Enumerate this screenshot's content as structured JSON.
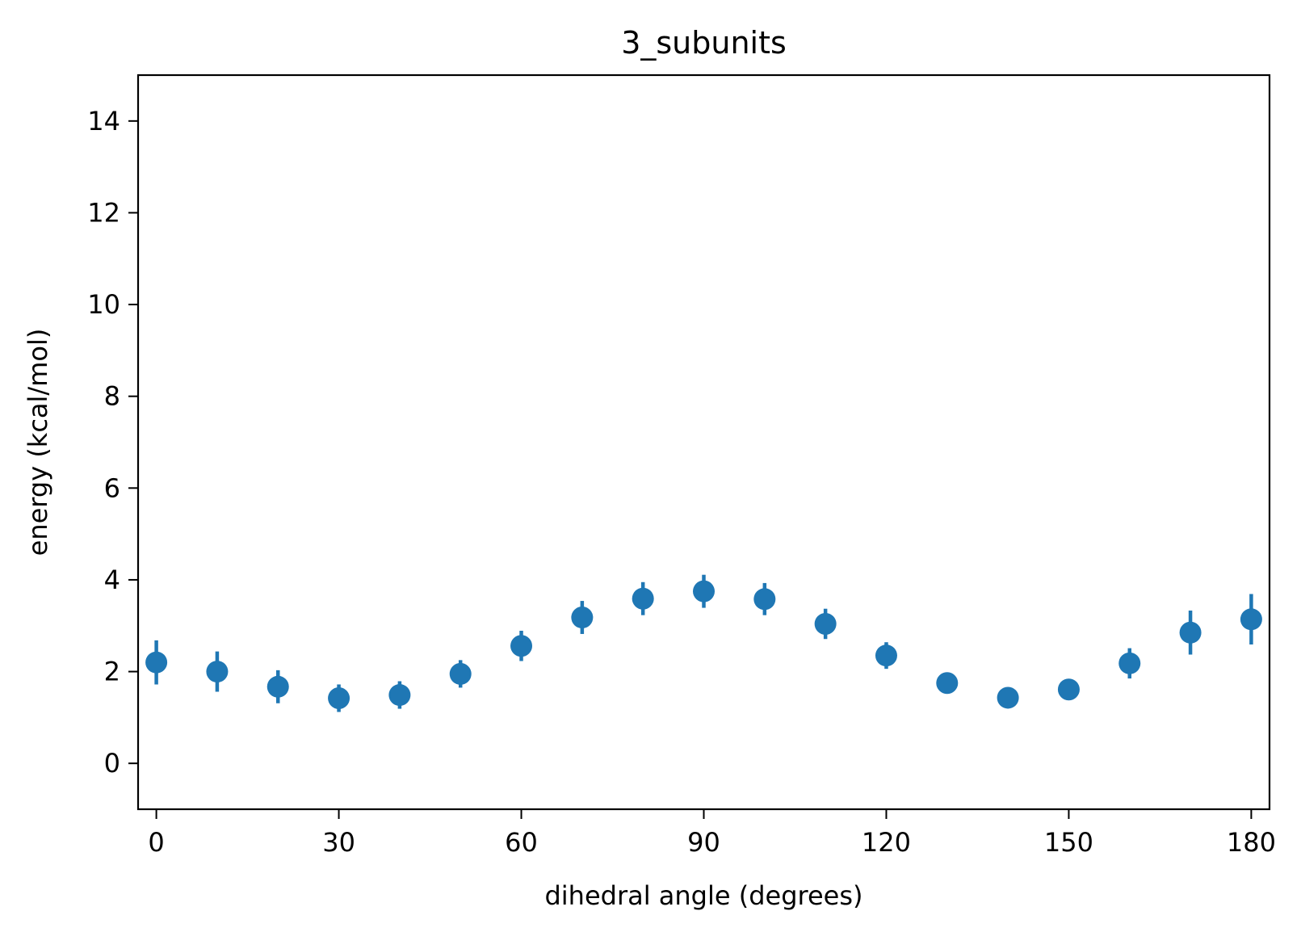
{
  "chart_data": {
    "type": "scatter",
    "title": "3_subunits",
    "xlabel": "dihedral angle (degrees)",
    "ylabel": "energy (kcal/mol)",
    "xlim": [
      -3,
      183
    ],
    "ylim": [
      -1,
      15
    ],
    "xticks": [
      0,
      30,
      60,
      90,
      120,
      150,
      180
    ],
    "yticks": [
      0,
      2,
      4,
      6,
      8,
      10,
      12,
      14
    ],
    "grid": false,
    "marker_color": "#1f77b4",
    "series": [
      {
        "points": [
          {
            "x": 0,
            "y": 2.2,
            "err": 0.48
          },
          {
            "x": 10,
            "y": 2.0,
            "err": 0.44
          },
          {
            "x": 20,
            "y": 1.67,
            "err": 0.36
          },
          {
            "x": 30,
            "y": 1.42,
            "err": 0.3
          },
          {
            "x": 40,
            "y": 1.49,
            "err": 0.3
          },
          {
            "x": 50,
            "y": 1.95,
            "err": 0.3
          },
          {
            "x": 60,
            "y": 2.56,
            "err": 0.33
          },
          {
            "x": 70,
            "y": 3.18,
            "err": 0.36
          },
          {
            "x": 80,
            "y": 3.59,
            "err": 0.36
          },
          {
            "x": 90,
            "y": 3.75,
            "err": 0.36
          },
          {
            "x": 100,
            "y": 3.58,
            "err": 0.35
          },
          {
            "x": 110,
            "y": 3.04,
            "err": 0.33
          },
          {
            "x": 120,
            "y": 2.35,
            "err": 0.29
          },
          {
            "x": 130,
            "y": 1.75,
            "err": 0.2
          },
          {
            "x": 140,
            "y": 1.43,
            "err": 0.15
          },
          {
            "x": 150,
            "y": 1.61,
            "err": 0.15
          },
          {
            "x": 160,
            "y": 2.18,
            "err": 0.33
          },
          {
            "x": 170,
            "y": 2.85,
            "err": 0.48
          },
          {
            "x": 180,
            "y": 3.14,
            "err": 0.55
          }
        ]
      }
    ]
  }
}
